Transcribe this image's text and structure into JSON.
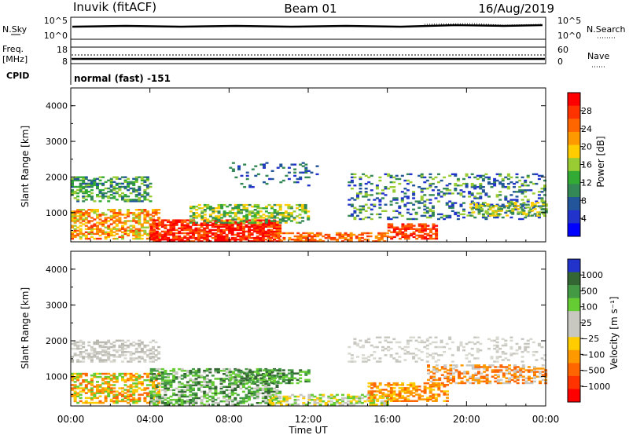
{
  "header": {
    "station": "Inuvik (fitACF)",
    "beam": "Beam 01",
    "date": "16/Aug/2019"
  },
  "noise_panel": {
    "left_label": "N.Sky",
    "left_ticks": [
      "10^5",
      "10^0"
    ],
    "right_ticks": [
      "10^5",
      "10^0"
    ],
    "right_label": "N.Search"
  },
  "freq_panel": {
    "left_label_1": "Freq.",
    "left_label_2": "[MHz]",
    "left_ticks": [
      "18",
      "8"
    ],
    "right_ticks": [
      "60",
      "0"
    ],
    "right_label": "Nave",
    "cpid_label": "CPID",
    "cpid_text": "normal (fast) -151"
  },
  "chart_data": [
    {
      "type": "heatmap",
      "name": "power",
      "ylabel": "Slant Range [km]",
      "y_ticks": [
        "4000",
        "3000",
        "2000",
        "1000"
      ],
      "ylim": [
        180,
        4500
      ],
      "xlim": [
        0,
        24
      ],
      "colorbar": {
        "label": "Power [dB]",
        "ticks": [
          "28",
          "24",
          "20",
          "16",
          "12",
          "8",
          "4"
        ],
        "colors": [
          "#ff0000",
          "#ff3300",
          "#ff6600",
          "#ff9900",
          "#ffcc00",
          "#99cc33",
          "#33aa33",
          "#338855",
          "#225599",
          "#2233cc",
          "#0000ff"
        ]
      }
    },
    {
      "type": "heatmap",
      "name": "velocity",
      "ylabel": "Slant Range [km]",
      "y_ticks": [
        "4000",
        "3000",
        "2000",
        "1000"
      ],
      "ylim": [
        180,
        4500
      ],
      "xlim": [
        0,
        24
      ],
      "colorbar": {
        "label": "Velocity [m s⁻¹]",
        "ticks": [
          "1000",
          "500",
          "100",
          "25",
          "−25",
          "−100",
          "−500",
          "−1000"
        ],
        "colors": [
          "#2233cc",
          "#336633",
          "#449944",
          "#66cc33",
          "#c8c8c0",
          "#c8c8c0",
          "#ffcc00",
          "#ff9900",
          "#ff6600",
          "#ff3300",
          "#ff0000"
        ]
      }
    }
  ],
  "x_axis": {
    "ticks": [
      "00:00",
      "04:00",
      "08:00",
      "12:00",
      "16:00",
      "20:00",
      "00:00"
    ],
    "label": "Time UT"
  }
}
